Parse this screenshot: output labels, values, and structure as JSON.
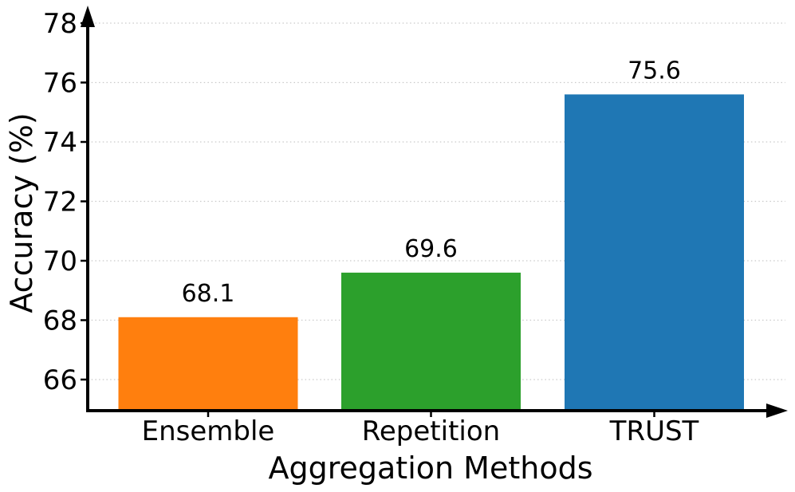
{
  "chart_data": {
    "type": "bar",
    "title": "",
    "xlabel": "Aggregation Methods",
    "ylabel": "Accuracy (%)",
    "categories": [
      "Ensemble",
      "Repetition",
      "TRUST"
    ],
    "values": [
      68.1,
      69.6,
      75.6
    ],
    "value_labels": [
      "68.1",
      "69.6",
      "75.6"
    ],
    "bar_colors": [
      "#ff7f0e",
      "#2ca02c",
      "#1f77b4"
    ],
    "yticks": [
      66,
      68,
      70,
      72,
      74,
      76,
      78
    ],
    "ylim": [
      65.0,
      78.5
    ],
    "grid": "horizontal-dotted",
    "grid_color": "#c9c9c9",
    "axis_color": "#000000",
    "legend": "none"
  }
}
